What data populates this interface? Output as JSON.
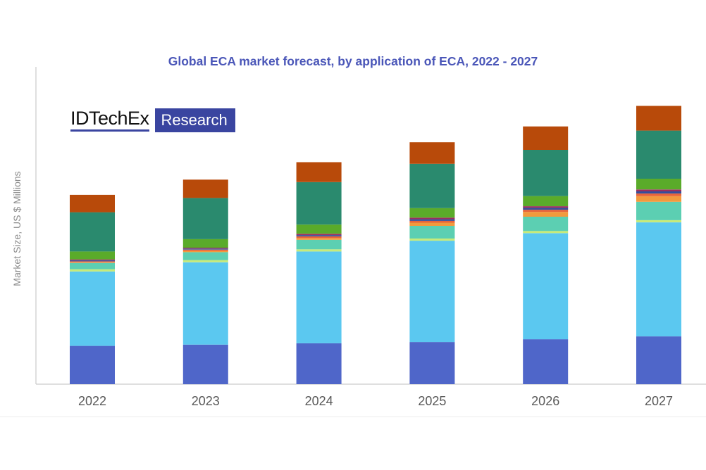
{
  "chart_data": {
    "type": "bar",
    "stacked": true,
    "title": "Global ECA market forecast, by application of ECA, 2022 - 2027",
    "xlabel": "",
    "ylabel": "Market Size, US $ Millions",
    "categories": [
      "2022",
      "2023",
      "2024",
      "2025",
      "2026",
      "2027"
    ],
    "ylim": [
      0,
      100
    ],
    "y_ticks_shown": false,
    "grid": false,
    "legend": "none",
    "series": [
      {
        "color": "#4f66c9",
        "values": [
          12.1,
          12.5,
          12.9,
          13.3,
          14.2,
          15.1
        ]
      },
      {
        "color": "#5bc8f0",
        "values": [
          23.5,
          26.0,
          29.0,
          32.0,
          33.5,
          36.0
        ]
      },
      {
        "color": "#c7ea7a",
        "values": [
          0.7,
          0.7,
          0.7,
          0.7,
          0.7,
          0.7
        ]
      },
      {
        "color": "#5ccfb2",
        "values": [
          2.0,
          2.5,
          3.0,
          4.0,
          4.5,
          5.8
        ]
      },
      {
        "color": "#f29a3d",
        "values": [
          0.2,
          0.4,
          0.6,
          1.0,
          1.5,
          1.8
        ]
      },
      {
        "color": "#e8643a",
        "values": [
          0.3,
          0.4,
          0.5,
          0.6,
          0.7,
          0.8
        ]
      },
      {
        "color": "#344f9c",
        "values": [
          0.3,
          0.3,
          0.4,
          0.5,
          0.6,
          0.7
        ]
      },
      {
        "color": "#9a2f5e",
        "values": [
          0.3,
          0.3,
          0.4,
          0.5,
          0.5,
          0.6
        ]
      },
      {
        "color": "#5aab2a",
        "values": [
          2.5,
          2.7,
          2.9,
          3.0,
          3.2,
          3.4
        ]
      },
      {
        "color": "#2a8a6e",
        "values": [
          12.4,
          13.0,
          13.4,
          14.0,
          14.6,
          15.2
        ]
      },
      {
        "color": "#b84a0a",
        "values": [
          5.5,
          5.8,
          6.3,
          6.8,
          7.4,
          7.8
        ]
      }
    ]
  },
  "logo": {
    "left": "IDTechEx",
    "right": "Research"
  }
}
